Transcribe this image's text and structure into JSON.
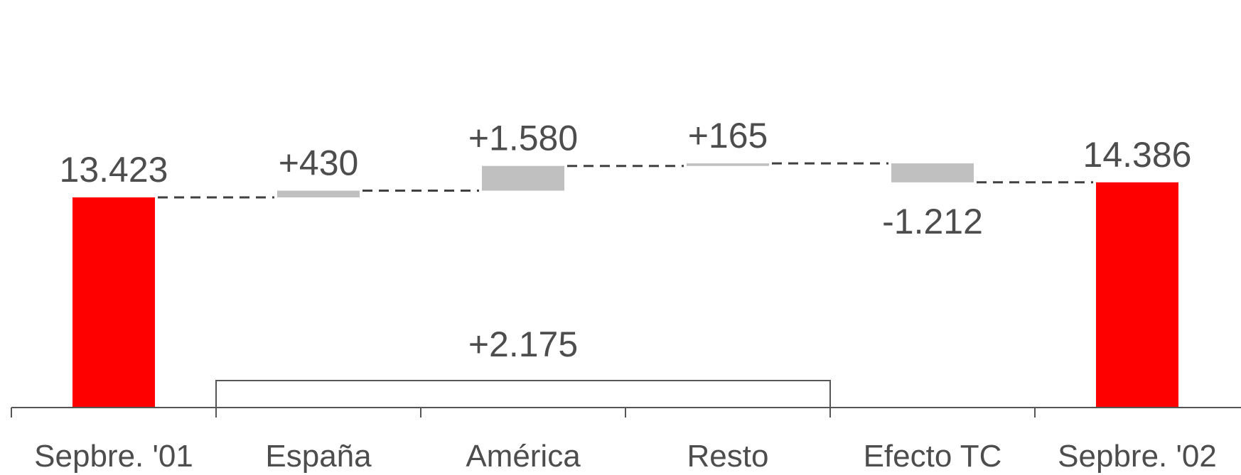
{
  "chart_data": {
    "type": "waterfall",
    "categories": [
      "Sepbre. '01",
      "España",
      "América",
      "Resto",
      "Efecto TC",
      "Sepbre. '02"
    ],
    "values": [
      13423,
      430,
      1580,
      165,
      -1212,
      14386
    ],
    "kinds": [
      "total",
      "delta",
      "delta",
      "delta",
      "delta",
      "total"
    ],
    "data_labels": [
      "13.423",
      "+430",
      "+1.580",
      "+165",
      "-1.212",
      "14.386"
    ],
    "bracket": {
      "label": "+2.175",
      "from_category": "España",
      "to_category": "Resto"
    },
    "colors": {
      "total": "#ff0000",
      "delta": "#c0c0c0",
      "text": "#4d4d4d",
      "axis": "#555555"
    },
    "grid": false,
    "legend": "none"
  }
}
